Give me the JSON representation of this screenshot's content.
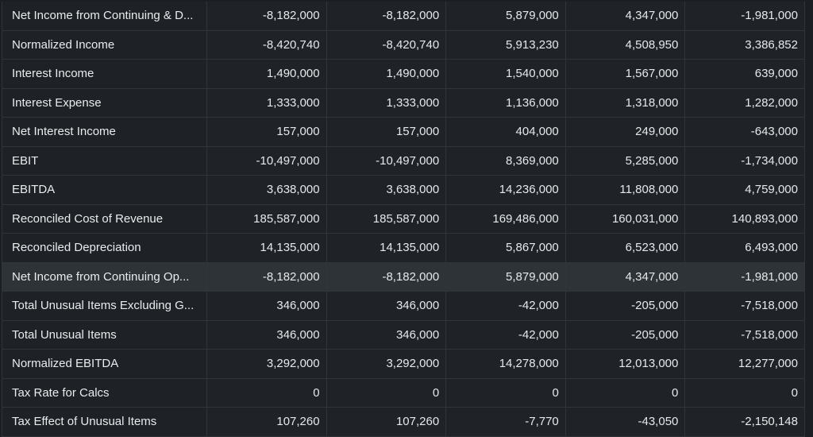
{
  "table": {
    "rows": [
      {
        "label": "Net Income from Continuing & D...",
        "values": [
          "-8,182,000",
          "-8,182,000",
          "5,879,000",
          "4,347,000",
          "-1,981,000"
        ]
      },
      {
        "label": "Normalized Income",
        "values": [
          "-8,420,740",
          "-8,420,740",
          "5,913,230",
          "4,508,950",
          "3,386,852"
        ]
      },
      {
        "label": "Interest Income",
        "values": [
          "1,490,000",
          "1,490,000",
          "1,540,000",
          "1,567,000",
          "639,000"
        ]
      },
      {
        "label": "Interest Expense",
        "values": [
          "1,333,000",
          "1,333,000",
          "1,136,000",
          "1,318,000",
          "1,282,000"
        ]
      },
      {
        "label": "Net Interest Income",
        "values": [
          "157,000",
          "157,000",
          "404,000",
          "249,000",
          "-643,000"
        ]
      },
      {
        "label": "EBIT",
        "values": [
          "-10,497,000",
          "-10,497,000",
          "8,369,000",
          "5,285,000",
          "-1,734,000"
        ]
      },
      {
        "label": "EBITDA",
        "values": [
          "3,638,000",
          "3,638,000",
          "14,236,000",
          "11,808,000",
          "4,759,000"
        ]
      },
      {
        "label": "Reconciled Cost of Revenue",
        "values": [
          "185,587,000",
          "185,587,000",
          "169,486,000",
          "160,031,000",
          "140,893,000"
        ]
      },
      {
        "label": "Reconciled Depreciation",
        "values": [
          "14,135,000",
          "14,135,000",
          "5,867,000",
          "6,523,000",
          "6,493,000"
        ]
      },
      {
        "label": "Net Income from Continuing Op...",
        "values": [
          "-8,182,000",
          "-8,182,000",
          "5,879,000",
          "4,347,000",
          "-1,981,000"
        ],
        "highlighted": true
      },
      {
        "label": "Total Unusual Items Excluding G...",
        "values": [
          "346,000",
          "346,000",
          "-42,000",
          "-205,000",
          "-7,518,000"
        ]
      },
      {
        "label": "Total Unusual Items",
        "values": [
          "346,000",
          "346,000",
          "-42,000",
          "-205,000",
          "-7,518,000"
        ]
      },
      {
        "label": "Normalized EBITDA",
        "values": [
          "3,292,000",
          "3,292,000",
          "14,278,000",
          "12,013,000",
          "12,277,000"
        ]
      },
      {
        "label": "Tax Rate for Calcs",
        "values": [
          "0",
          "0",
          "0",
          "0",
          "0"
        ]
      },
      {
        "label": "Tax Effect of Unusual Items",
        "values": [
          "107,260",
          "107,260",
          "-7,770",
          "-43,050",
          "-2,150,148"
        ]
      }
    ]
  }
}
